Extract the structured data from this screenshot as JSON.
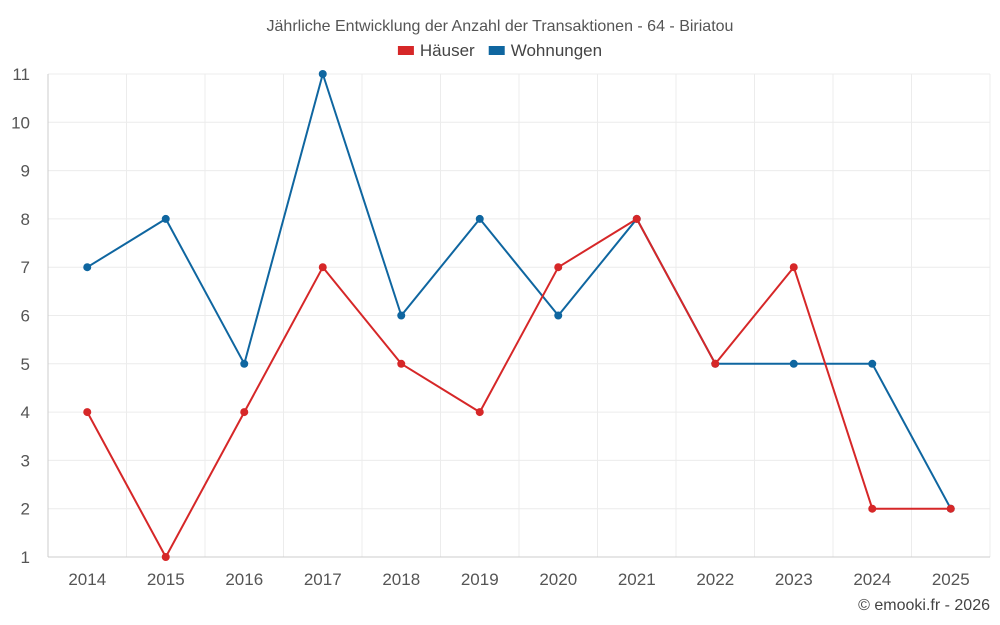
{
  "chart_data": {
    "type": "line",
    "title": "Jährliche Entwicklung der Anzahl der Transaktionen - 64 - Biriatou",
    "x": [
      "2014",
      "2015",
      "2016",
      "2017",
      "2018",
      "2019",
      "2020",
      "2021",
      "2022",
      "2023",
      "2024",
      "2025"
    ],
    "series": [
      {
        "name": "Häuser",
        "color": "#d62728",
        "values": [
          4,
          1,
          4,
          7,
          5,
          4,
          7,
          8,
          5,
          7,
          2,
          2
        ]
      },
      {
        "name": "Wohnungen",
        "color": "#0f66a0",
        "values": [
          7,
          8,
          5,
          11,
          6,
          8,
          6,
          8,
          5,
          5,
          5,
          2
        ]
      }
    ],
    "ylim": [
      1,
      11
    ],
    "yticks": [
      "1",
      "2",
      "3",
      "4",
      "5",
      "6",
      "7",
      "8",
      "9",
      "10",
      "11"
    ],
    "grid": true,
    "legend_position": "top-center"
  },
  "credit": "© emooki.fr - 2026"
}
